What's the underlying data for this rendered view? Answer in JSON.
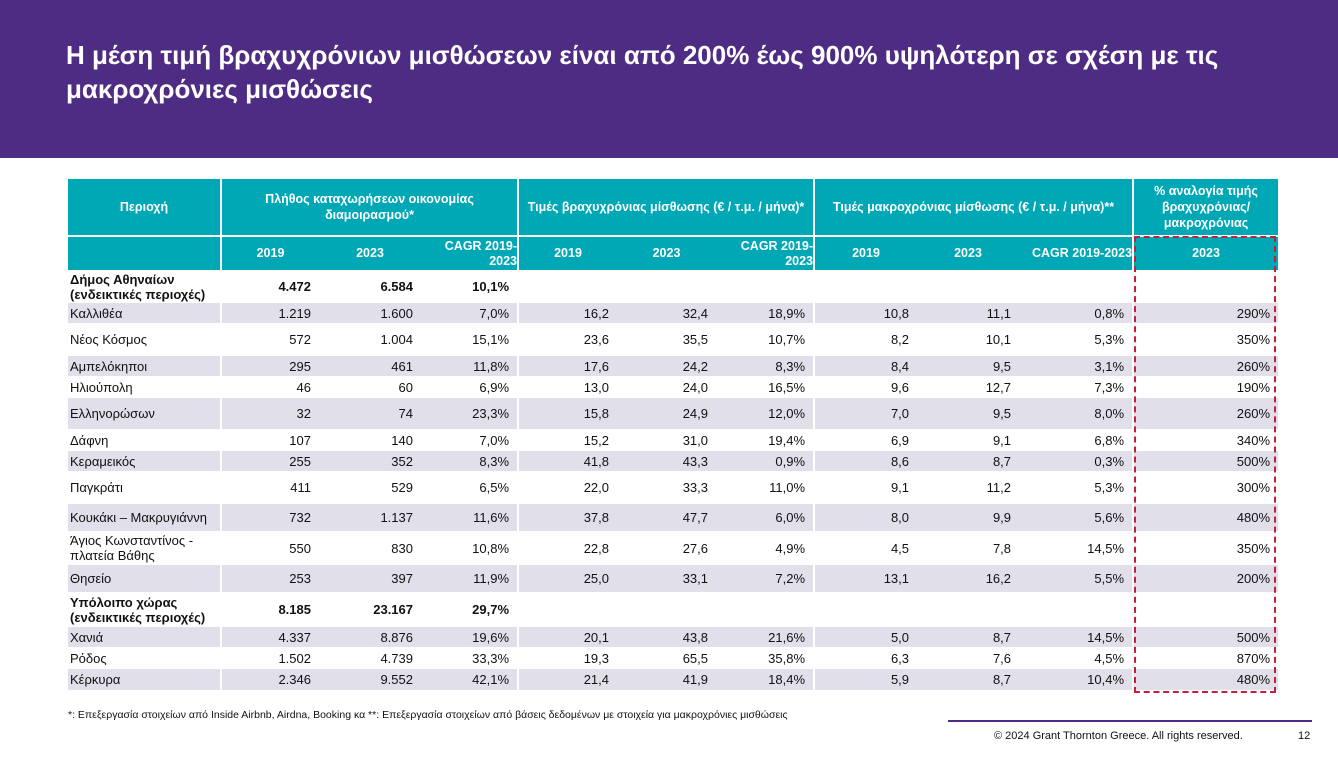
{
  "title": "Η μέση τιμή βραχυχρόνιων μισθώσεων είναι από 200% έως 900% υψηλότερη σε σχέση με τις μακροχρόνιες μισθώσεις",
  "colors": {
    "header": "#4f2c83",
    "table_header": "#00a7b5",
    "shade": "#e0dfea",
    "highlight": "#c0203a"
  },
  "table": {
    "group_headers": {
      "region": "Περιοχή",
      "listings": "Πλήθος καταχωρήσεων οικονομίας διαμοιρασμού*",
      "short_prices": "Τιμές βραχυχρόνιας μίσθωσης (€ / τ.μ. / μήνα)*",
      "long_prices": "Τιμές μακροχρόνιας μίσθωσης (€ / τ.μ. / μήνα)**",
      "ratio": "% αναλογία τιμής βραχυχρόνιας/ μακροχρόνιας"
    },
    "sub_headers": {
      "y2019": "2019",
      "y2023": "2023",
      "cagr": "CAGR 2019-2023",
      "ratio_year": "2023"
    },
    "rows": [
      {
        "region": "Δήμος Αθηναίων (ενδεικτικές περιοχές)",
        "l2019": "4.472",
        "l2023": "6.584",
        "lcagr": "10,1%",
        "s2019": "",
        "s2023": "",
        "scagr": "",
        "m2019": "",
        "m2023": "",
        "mcagr": "",
        "ratio": ""
      },
      {
        "region": "Καλλιθέα",
        "l2019": "1.219",
        "l2023": "1.600",
        "lcagr": "7,0%",
        "s2019": "16,2",
        "s2023": "32,4",
        "scagr": "18,9%",
        "m2019": "10,8",
        "m2023": "11,1",
        "mcagr": "0,8%",
        "ratio": "290%"
      },
      {
        "region": "Νέος Κόσμος",
        "l2019": "572",
        "l2023": "1.004",
        "lcagr": "15,1%",
        "s2019": "23,6",
        "s2023": "35,5",
        "scagr": "10,7%",
        "m2019": "8,2",
        "m2023": "10,1",
        "mcagr": "5,3%",
        "ratio": "350%"
      },
      {
        "region": "Αμπελόκηποι",
        "l2019": "295",
        "l2023": "461",
        "lcagr": "11,8%",
        "s2019": "17,6",
        "s2023": "24,2",
        "scagr": "8,3%",
        "m2019": "8,4",
        "m2023": "9,5",
        "mcagr": "3,1%",
        "ratio": "260%"
      },
      {
        "region": "Ηλιούπολη",
        "l2019": "46",
        "l2023": "60",
        "lcagr": "6,9%",
        "s2019": "13,0",
        "s2023": "24,0",
        "scagr": "16,5%",
        "m2019": "9,6",
        "m2023": "12,7",
        "mcagr": "7,3%",
        "ratio": "190%"
      },
      {
        "region": "Ελληνορώσων",
        "l2019": "32",
        "l2023": "74",
        "lcagr": "23,3%",
        "s2019": "15,8",
        "s2023": "24,9",
        "scagr": "12,0%",
        "m2019": "7,0",
        "m2023": "9,5",
        "mcagr": "8,0%",
        "ratio": "260%"
      },
      {
        "region": "Δάφνη",
        "l2019": "107",
        "l2023": "140",
        "lcagr": "7,0%",
        "s2019": "15,2",
        "s2023": "31,0",
        "scagr": "19,4%",
        "m2019": "6,9",
        "m2023": "9,1",
        "mcagr": "6,8%",
        "ratio": "340%"
      },
      {
        "region": "Κεραμεικός",
        "l2019": "255",
        "l2023": "352",
        "lcagr": "8,3%",
        "s2019": "41,8",
        "s2023": "43,3",
        "scagr": "0,9%",
        "m2019": "8,6",
        "m2023": "8,7",
        "mcagr": "0,3%",
        "ratio": "500%"
      },
      {
        "region": "Παγκράτι",
        "l2019": "411",
        "l2023": "529",
        "lcagr": "6,5%",
        "s2019": "22,0",
        "s2023": "33,3",
        "scagr": "11,0%",
        "m2019": "9,1",
        "m2023": "11,2",
        "mcagr": "5,3%",
        "ratio": "300%"
      },
      {
        "region": "Κουκάκι – Μακρυγιάννη",
        "l2019": "732",
        "l2023": "1.137",
        "lcagr": "11,6%",
        "s2019": "37,8",
        "s2023": "47,7",
        "scagr": "6,0%",
        "m2019": "8,0",
        "m2023": "9,9",
        "mcagr": "5,6%",
        "ratio": "480%"
      },
      {
        "region": "Άγιος Κωνσταντίνος - πλατεία Βάθης",
        "l2019": "550",
        "l2023": "830",
        "lcagr": "10,8%",
        "s2019": "22,8",
        "s2023": "27,6",
        "scagr": "4,9%",
        "m2019": "4,5",
        "m2023": "7,8",
        "mcagr": "14,5%",
        "ratio": "350%"
      },
      {
        "region": "Θησείο",
        "l2019": "253",
        "l2023": "397",
        "lcagr": "11,9%",
        "s2019": "25,0",
        "s2023": "33,1",
        "scagr": "7,2%",
        "m2019": "13,1",
        "m2023": "16,2",
        "mcagr": "5,5%",
        "ratio": "200%"
      },
      {
        "region": "Υπόλοιπο χώρας (ενδεικτικές περιοχές)",
        "l2019": "8.185",
        "l2023": "23.167",
        "lcagr": "29,7%",
        "s2019": "",
        "s2023": "",
        "scagr": "",
        "m2019": "",
        "m2023": "",
        "mcagr": "",
        "ratio": ""
      },
      {
        "region": "Χανιά",
        "l2019": "4.337",
        "l2023": "8.876",
        "lcagr": "19,6%",
        "s2019": "20,1",
        "s2023": "43,8",
        "scagr": "21,6%",
        "m2019": "5,0",
        "m2023": "8,7",
        "mcagr": "14,5%",
        "ratio": "500%"
      },
      {
        "region": "Ρόδος",
        "l2019": "1.502",
        "l2023": "4.739",
        "lcagr": "33,3%",
        "s2019": "19,3",
        "s2023": "65,5",
        "scagr": "35,8%",
        "m2019": "6,3",
        "m2023": "7,6",
        "mcagr": "4,5%",
        "ratio": "870%"
      },
      {
        "region": "Κέρκυρα",
        "l2019": "2.346",
        "l2023": "9.552",
        "lcagr": "42,1%",
        "s2019": "21,4",
        "s2023": "41,9",
        "scagr": "18,4%",
        "m2019": "5,9",
        "m2023": "8,7",
        "mcagr": "10,4%",
        "ratio": "480%"
      }
    ]
  },
  "footnote": "*: Επεξεργασία στοιχείων από Inside Airbnb, Airdna, Booking κα **: Επεξεργασία στοιχείων από βάσεις δεδομένων με στοιχεία για μακροχρόνιες μισθώσεις",
  "footer": {
    "copyright": "© 2024 Grant Thornton Greece. All rights reserved.",
    "page_number": "12"
  }
}
